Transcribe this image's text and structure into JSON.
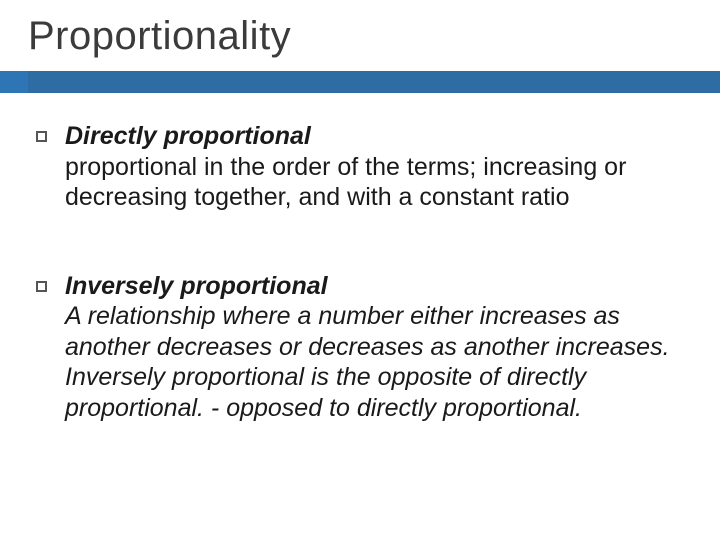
{
  "title": "Proportionality",
  "accent_color": "#2e75b6",
  "background_color": "#ffffff",
  "title_fontsize": 40,
  "body_fontsize": 25,
  "bullet_style": "hollow-square",
  "items": [
    {
      "term": "Directly proportional",
      "definition": "proportional in the order of the terms; increasing or decreasing together, and with a constant ratio"
    },
    {
      "term": "Inversely proportional",
      "definition": "A relationship where a number either increases as another decreases or decreases as another increases. Inversely proportional is the opposite of directly proportional. - opposed to directly proportional."
    }
  ]
}
